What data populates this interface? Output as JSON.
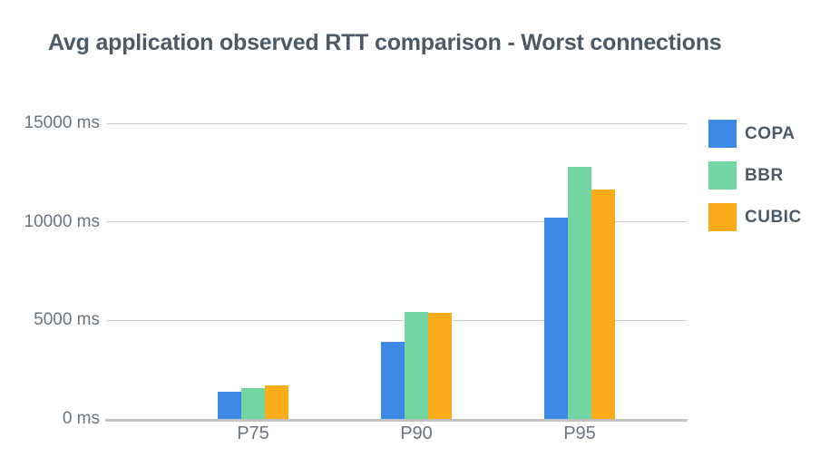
{
  "title": "Avg application observed RTT comparison - Worst connections",
  "colors": {
    "background": "#ffffff",
    "title_text": "#4c5a67",
    "axis_text": "#6b7480",
    "legend_text": "#4c5a67",
    "gridline": "#cdcdcd",
    "baseline": "#c2c2c2"
  },
  "chart_data": {
    "type": "bar",
    "title": "Avg application observed RTT comparison - Worst connections",
    "categories": [
      "P75",
      "P90",
      "P95"
    ],
    "series": [
      {
        "name": "COPA",
        "color": "#3c89e6",
        "values": [
          1400,
          3900,
          10200
        ]
      },
      {
        "name": "BBR",
        "color": "#71d6a2",
        "values": [
          1550,
          5450,
          12800
        ]
      },
      {
        "name": "CUBIC",
        "color": "#fbac1b",
        "values": [
          1700,
          5400,
          11650
        ]
      }
    ],
    "xlabel": "",
    "ylabel": "",
    "unit": "ms",
    "ylim": [
      0,
      15000
    ],
    "yticks": [
      {
        "value": 0,
        "label": "0 ms"
      },
      {
        "value": 5000,
        "label": "5000 ms"
      },
      {
        "value": 10000,
        "label": "10000 ms"
      },
      {
        "value": 15000,
        "label": "15000 ms"
      }
    ],
    "grid": true,
    "legend_position": "right"
  }
}
